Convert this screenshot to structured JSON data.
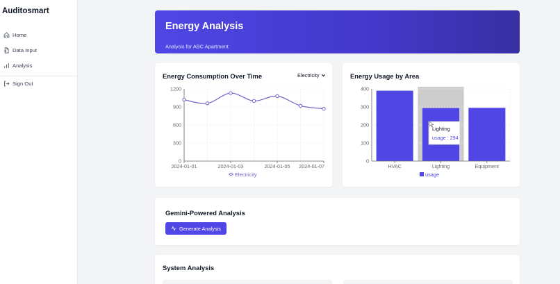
{
  "app": {
    "name": "Auditosmart"
  },
  "sidebar": {
    "items": [
      {
        "label": "Home",
        "icon": "home-icon"
      },
      {
        "label": "Data Input",
        "icon": "file-input-icon"
      },
      {
        "label": "Analysis",
        "icon": "bar-chart-icon"
      },
      {
        "label": "Sign Out",
        "icon": "sign-out-icon"
      }
    ]
  },
  "header": {
    "title": "Energy Analysis",
    "subtitle": "Analysis for ABC Apartment"
  },
  "consumption_card": {
    "title": "Energy Consumption Over Time",
    "select_value": "Electricity"
  },
  "usage_card": {
    "title": "Energy Usage by Area",
    "tooltip": {
      "category": "Lighting",
      "text": "usage : 294"
    }
  },
  "gemini_card": {
    "title": "Gemini-Powered Analysis",
    "button_label": "Generate Analysis"
  },
  "system_card": {
    "title": "System Analysis"
  },
  "colors": {
    "accent": "#4f46e5",
    "line": "#6d64c8",
    "hover": "#cccccc"
  },
  "chart_data": [
    {
      "type": "line",
      "title": "Energy Consumption Over Time",
      "x": [
        "2024-01-01",
        "2024-01-02",
        "2024-01-03",
        "2024-01-04",
        "2024-01-05",
        "2024-01-06",
        "2024-01-07"
      ],
      "x_tick_labels": [
        "2024-01-01",
        "2024-01-03",
        "2024-01-05",
        "2024-01-07"
      ],
      "series": [
        {
          "name": "Electricity",
          "values": [
            1020,
            960,
            1130,
            1000,
            1080,
            920,
            870
          ]
        }
      ],
      "yticks": [
        0,
        300,
        600,
        900,
        1200
      ],
      "ylim": [
        0,
        1200
      ],
      "grid": true,
      "legend": "bottom"
    },
    {
      "type": "bar",
      "title": "Energy Usage by Area",
      "categories": [
        "HVAC",
        "Lighting",
        "Equipment"
      ],
      "series": [
        {
          "name": "usage",
          "values": [
            390,
            294,
            295
          ]
        }
      ],
      "yticks": [
        0,
        100,
        200,
        300,
        400
      ],
      "ylim": [
        0,
        400
      ],
      "grid": true,
      "legend": "bottom",
      "highlighted": "Lighting"
    }
  ]
}
